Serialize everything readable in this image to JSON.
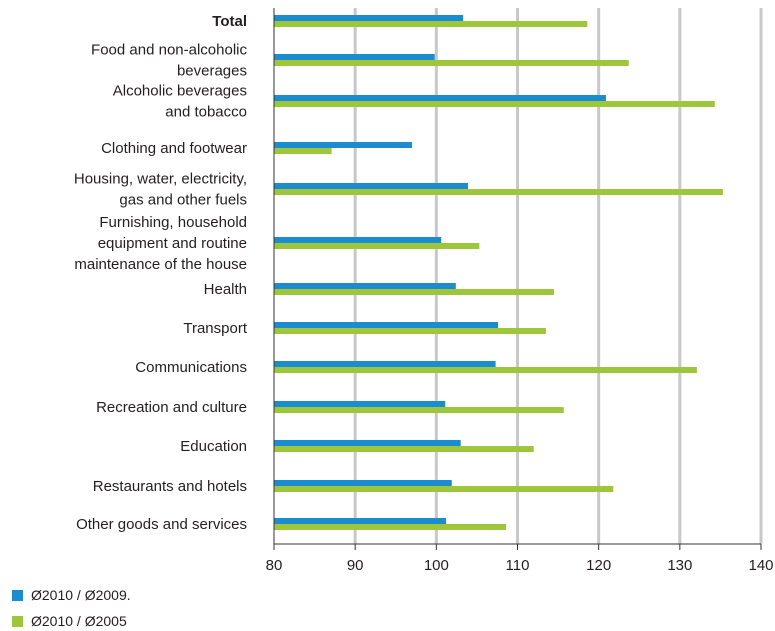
{
  "chart_data": {
    "type": "bar",
    "orientation": "horizontal",
    "categories": [
      "Total",
      "Food and non-alcoholic beverages",
      "Alcoholic beverages and tobacco",
      "Clothing and footwear",
      "Housing, water, electricity, gas and other fuels",
      "Furnishing, household equipment and routine maintenance of the house",
      "Health",
      "Transport",
      "Communications",
      "Recreation and culture",
      "Education",
      "Restaurants and hotels",
      "Other goods and services"
    ],
    "category_label_lines": [
      [
        "Total"
      ],
      [
        "Food and non-alcoholic",
        "beverages"
      ],
      [
        "Alcoholic beverages",
        "and tobacco"
      ],
      [
        "Clothing and footwear"
      ],
      [
        "Housing, water, electricity,",
        "gas and other fuels"
      ],
      [
        "Furnishing, household",
        "equipment and routine",
        "maintenance of the house"
      ],
      [
        "Health"
      ],
      [
        "Transport"
      ],
      [
        "Communications"
      ],
      [
        "Recreation and culture"
      ],
      [
        "Education"
      ],
      [
        "Restaurants and hotels"
      ],
      [
        "Other goods and services"
      ]
    ],
    "series": [
      {
        "name": "Ø2010 / Ø2009.",
        "color": "#1b8ccf",
        "values": [
          103.3,
          99.8,
          120.9,
          97.0,
          103.9,
          100.6,
          102.4,
          107.6,
          107.3,
          101.1,
          103.0,
          101.9,
          101.2
        ]
      },
      {
        "name": "Ø2010 / Ø2005",
        "color": "#9dc63b",
        "values": [
          118.6,
          123.7,
          134.3,
          87.1,
          135.3,
          105.3,
          114.5,
          113.5,
          132.1,
          115.7,
          112.0,
          121.8,
          108.6
        ]
      }
    ],
    "xlim": [
      80,
      140
    ],
    "xticks": [
      80,
      90,
      100,
      110,
      120,
      130,
      140
    ],
    "grid": true,
    "legend_position": "bottom-left",
    "bold_categories": [
      "Total"
    ]
  }
}
